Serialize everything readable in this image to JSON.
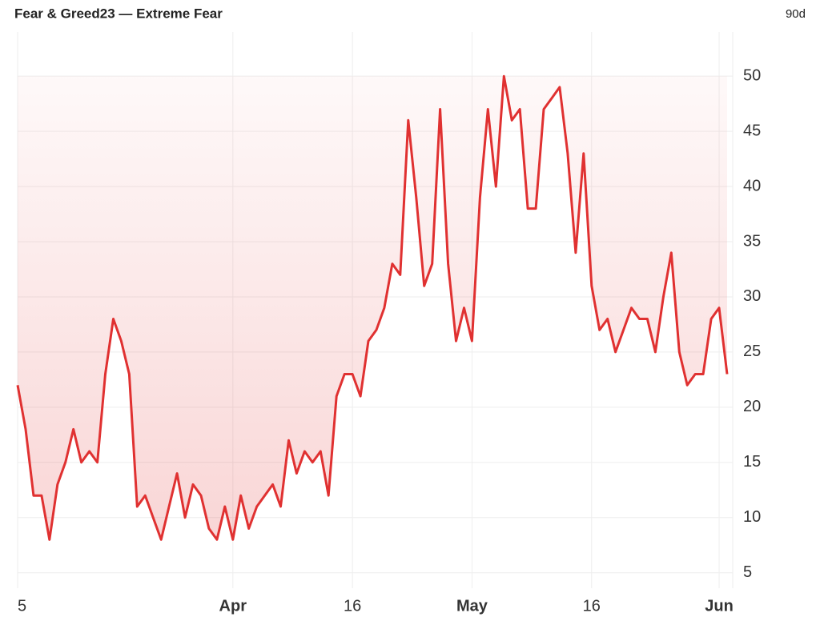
{
  "chart_data": {
    "type": "line",
    "title": "Fear & Greed23 — Extreme Fear",
    "range_label": "90d",
    "categories": [
      "5",
      null,
      null,
      null,
      null,
      null,
      null,
      null,
      null,
      null,
      null,
      null,
      null,
      null,
      null,
      null,
      null,
      null,
      null,
      null,
      null,
      null,
      null,
      null,
      null,
      null,
      null,
      "Apr",
      null,
      null,
      null,
      null,
      null,
      null,
      null,
      null,
      null,
      null,
      null,
      null,
      null,
      null,
      "16",
      null,
      null,
      null,
      null,
      null,
      null,
      null,
      null,
      null,
      null,
      null,
      null,
      null,
      null,
      "May",
      null,
      null,
      null,
      null,
      null,
      null,
      null,
      null,
      null,
      null,
      null,
      null,
      null,
      null,
      "16",
      null,
      null,
      null,
      null,
      null,
      null,
      null,
      null,
      null,
      null,
      null,
      null,
      null,
      null,
      null,
      "Jun",
      null
    ],
    "series": [
      {
        "name": "Fear & Greed",
        "color": "#e03131",
        "values": [
          22,
          18,
          12,
          12,
          8,
          13,
          15,
          18,
          15,
          16,
          15,
          23,
          28,
          26,
          23,
          11,
          12,
          10,
          8,
          11,
          14,
          10,
          13,
          12,
          9,
          8,
          11,
          8,
          12,
          9,
          11,
          12,
          13,
          11,
          17,
          14,
          16,
          15,
          16,
          12,
          21,
          23,
          23,
          21,
          26,
          27,
          29,
          33,
          32,
          46,
          39,
          31,
          33,
          47,
          33,
          26,
          29,
          26,
          39,
          47,
          40,
          50,
          46,
          47,
          38,
          38,
          47,
          48,
          49,
          43,
          34,
          43,
          31,
          27,
          28,
          25,
          27,
          29,
          28,
          28,
          25,
          30,
          34,
          25,
          22,
          23,
          23,
          28,
          29,
          23
        ]
      }
    ],
    "ylim": [
      3.6,
      54
    ],
    "yticks": [
      5,
      10,
      15,
      20,
      25,
      30,
      35,
      40,
      45,
      50
    ],
    "grid": true
  }
}
